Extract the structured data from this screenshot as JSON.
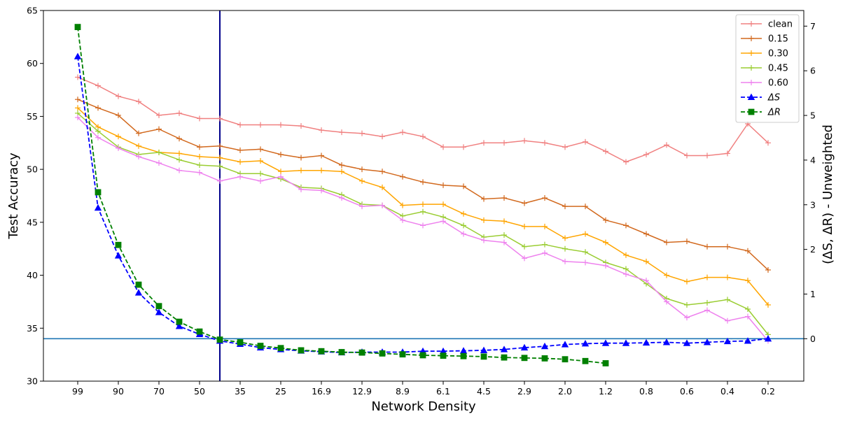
{
  "chart_data": {
    "type": "line",
    "title": "",
    "xlabel": "Network Density",
    "ylabel": "Test Accuracy",
    "y2label": "(ΔS, ΔR) - Unweighted",
    "ylim": [
      30,
      65
    ],
    "y2lim": [
      -0.95,
      7.35
    ],
    "yticks": [
      30,
      35,
      40,
      45,
      50,
      55,
      60,
      65
    ],
    "y2ticks": [
      0,
      1,
      2,
      3,
      4,
      5,
      6,
      7
    ],
    "x_tick_labels": [
      "99",
      "90",
      "70",
      "50",
      "35",
      "25",
      "16.9",
      "12.9",
      "8.9",
      "6.1",
      "4.5",
      "2.9",
      "2.0",
      "1.2",
      "0.8",
      "0.6",
      "0.4",
      "0.2"
    ],
    "n_points": 35,
    "vline_index": 7,
    "hline_y2": 0,
    "legend_position": "top-right",
    "colors": {
      "clean": "#f08080",
      "0.15": "#d2691e",
      "0.30": "#ffa500",
      "0.45": "#9acd32",
      "0.60": "#ee82ee",
      "delta_s": "#0000ff",
      "delta_r": "#008000",
      "vline": "#00008b",
      "hline": "#1f77b4"
    },
    "series": [
      {
        "name": "clean",
        "key": "clean",
        "axis": "left",
        "style": "solid-plus",
        "values": [
          58.7,
          57.9,
          56.9,
          56.4,
          55.1,
          55.3,
          54.8,
          54.8,
          54.2,
          54.2,
          54.2,
          54.1,
          53.7,
          53.5,
          53.4,
          53.1,
          53.5,
          53.1,
          52.1,
          52.1,
          52.5,
          52.5,
          52.7,
          52.5,
          52.1,
          52.6,
          51.7,
          50.7,
          51.4,
          52.3,
          51.3,
          51.3,
          51.5,
          54.3,
          52.5
        ]
      },
      {
        "name": "0.15",
        "key": "0.15",
        "axis": "left",
        "style": "solid-plus",
        "values": [
          56.6,
          55.8,
          55.1,
          53.4,
          53.8,
          52.9,
          52.1,
          52.2,
          51.8,
          51.9,
          51.4,
          51.1,
          51.3,
          50.4,
          50.0,
          49.8,
          49.3,
          48.8,
          48.5,
          48.4,
          47.2,
          47.3,
          46.8,
          47.3,
          46.5,
          46.5,
          45.2,
          44.7,
          43.9,
          43.1,
          43.2,
          42.7,
          42.7,
          42.3,
          40.5
        ]
      },
      {
        "name": "0.30",
        "key": "0.30",
        "axis": "left",
        "style": "solid-plus",
        "values": [
          55.8,
          54.0,
          53.1,
          52.2,
          51.6,
          51.5,
          51.2,
          51.1,
          50.7,
          50.8,
          49.8,
          49.9,
          49.9,
          49.8,
          48.9,
          48.3,
          46.6,
          46.7,
          46.7,
          45.8,
          45.2,
          45.1,
          44.6,
          44.6,
          43.5,
          43.9,
          43.1,
          41.9,
          41.3,
          40.0,
          39.4,
          39.8,
          39.8,
          39.5,
          37.2
        ]
      },
      {
        "name": "0.45",
        "key": "0.45",
        "axis": "left",
        "style": "solid-plus",
        "values": [
          55.3,
          53.6,
          52.1,
          51.4,
          51.6,
          50.9,
          50.4,
          50.3,
          49.6,
          49.6,
          49.1,
          48.3,
          48.2,
          47.6,
          46.7,
          46.6,
          45.6,
          46.0,
          45.5,
          44.7,
          43.6,
          43.8,
          42.7,
          42.9,
          42.5,
          42.2,
          41.2,
          40.6,
          39.2,
          37.8,
          37.2,
          37.4,
          37.7,
          36.8,
          34.4
        ]
      },
      {
        "name": "0.60",
        "key": "0.60",
        "axis": "left",
        "style": "solid-plus",
        "values": [
          54.9,
          53.0,
          52.0,
          51.2,
          50.6,
          49.9,
          49.7,
          48.9,
          49.3,
          48.9,
          49.3,
          48.1,
          48.0,
          47.3,
          46.5,
          46.6,
          45.2,
          44.7,
          45.1,
          43.9,
          43.3,
          43.1,
          41.6,
          42.1,
          41.3,
          41.2,
          40.9,
          40.1,
          39.5,
          37.5,
          36.0,
          36.7,
          35.7,
          36.1,
          33.8
        ]
      },
      {
        "name": "ΔS",
        "key": "delta_s",
        "axis": "right",
        "style": "dashed-triangle",
        "values": [
          6.32,
          2.93,
          1.86,
          1.03,
          0.59,
          0.28,
          0.1,
          -0.05,
          -0.12,
          -0.2,
          -0.24,
          -0.27,
          -0.29,
          -0.31,
          -0.3,
          -0.3,
          -0.3,
          -0.28,
          -0.28,
          -0.27,
          -0.26,
          -0.24,
          -0.2,
          -0.17,
          -0.13,
          -0.11,
          -0.1,
          -0.1,
          -0.09,
          -0.08,
          -0.1,
          -0.08,
          -0.06,
          -0.05,
          0.0
        ]
      },
      {
        "name": "ΔR",
        "key": "delta_r",
        "axis": "right",
        "style": "dashed-square",
        "values": [
          6.98,
          3.28,
          2.1,
          1.21,
          0.73,
          0.38,
          0.16,
          -0.02,
          -0.08,
          -0.16,
          -0.21,
          -0.26,
          -0.28,
          -0.3,
          -0.31,
          -0.33,
          -0.35,
          -0.37,
          -0.38,
          -0.39,
          -0.4,
          -0.42,
          -0.43,
          -0.44,
          -0.46,
          -0.5,
          -0.55,
          null,
          null,
          null,
          null,
          null,
          null,
          null,
          null
        ]
      }
    ]
  }
}
